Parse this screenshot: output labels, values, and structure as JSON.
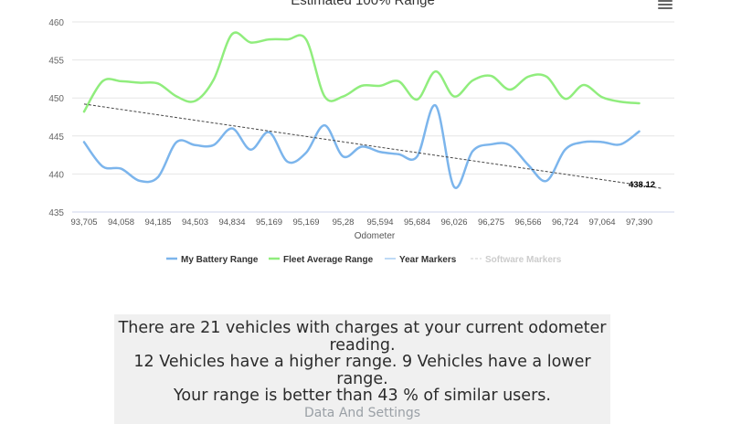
{
  "chart_data": {
    "type": "line",
    "title": "Estimated 100% Range",
    "xlabel": "Odometer",
    "ylabel": "",
    "ylim": [
      435,
      460
    ],
    "yticks": [
      435,
      440,
      445,
      450,
      455,
      460
    ],
    "x_tick_labels": [
      "93,705",
      "94,058",
      "94,185",
      "94,503",
      "94,834",
      "95,169",
      "95,169",
      "95,28",
      "95,594",
      "95,684",
      "96,026",
      "96,275",
      "96,566",
      "96,724",
      "97,064",
      "97,390"
    ],
    "grid": "horizontal",
    "legend_position": "bottom",
    "series": [
      {
        "name": "My Battery Range",
        "color": "#7cb5ec",
        "x": [
          0,
          0.5,
          1,
          1.5,
          2,
          2.5,
          3,
          3.5,
          4,
          4.5,
          5,
          5.5,
          6,
          6.5,
          7,
          7.5,
          8,
          8.5,
          9,
          9.5,
          10,
          10.5,
          11,
          11.5,
          12,
          12.5,
          13,
          13.5,
          14,
          14.5,
          15
        ],
        "values": [
          444.2,
          441,
          440.7,
          439.1,
          439.6,
          444.2,
          443.8,
          443.8,
          446,
          443.2,
          445.5,
          441.6,
          442.8,
          446.4,
          442.3,
          443.6,
          442.9,
          442.6,
          442.3,
          449,
          438.3,
          443,
          443.9,
          443.8,
          441.2,
          439.1,
          443.2,
          444.2,
          444.2,
          443.9,
          445.6
        ]
      },
      {
        "name": "Fleet Average Range",
        "color": "#90ed7d",
        "x": [
          0,
          0.5,
          1,
          1.5,
          2,
          2.5,
          3,
          3.5,
          4,
          4.5,
          5,
          5.5,
          6,
          6.5,
          7,
          7.5,
          8,
          8.5,
          9,
          9.5,
          10,
          10.5,
          11,
          11.5,
          12,
          12.5,
          13,
          13.5,
          14,
          14.5,
          15
        ],
        "values": [
          448.2,
          452.2,
          452.2,
          452,
          451.9,
          450.2,
          449.6,
          452.4,
          458.4,
          457.3,
          457.7,
          457.7,
          457.7,
          450.2,
          450.2,
          451.6,
          451.6,
          452.2,
          449.8,
          453.5,
          450.2,
          452.3,
          452.9,
          451.1,
          452.8,
          452.8,
          449.9,
          451.7,
          450.1,
          449.5,
          449.3
        ]
      },
      {
        "name": "Year Markers",
        "color": "#7cb5ec",
        "x": [],
        "values": []
      },
      {
        "name": "Software Markers",
        "color": "#444444",
        "x": [
          0,
          15.6
        ],
        "values": [
          449.2,
          438.12
        ],
        "annotations": [
          {
            "x": 15,
            "y": 438.12,
            "text": "438.12"
          }
        ]
      }
    ]
  },
  "summary": {
    "line1": "There are 21 vehicles with charges at your current odometer",
    "line2": "reading.",
    "line3": "12 Vehicles have a higher range. 9 Vehicles have a lower",
    "line4": "range.",
    "line5": "Your range is better than 43 % of similar users.",
    "line6": "Data And Settings"
  },
  "icons": {
    "menu": "hamburger-menu-icon"
  }
}
